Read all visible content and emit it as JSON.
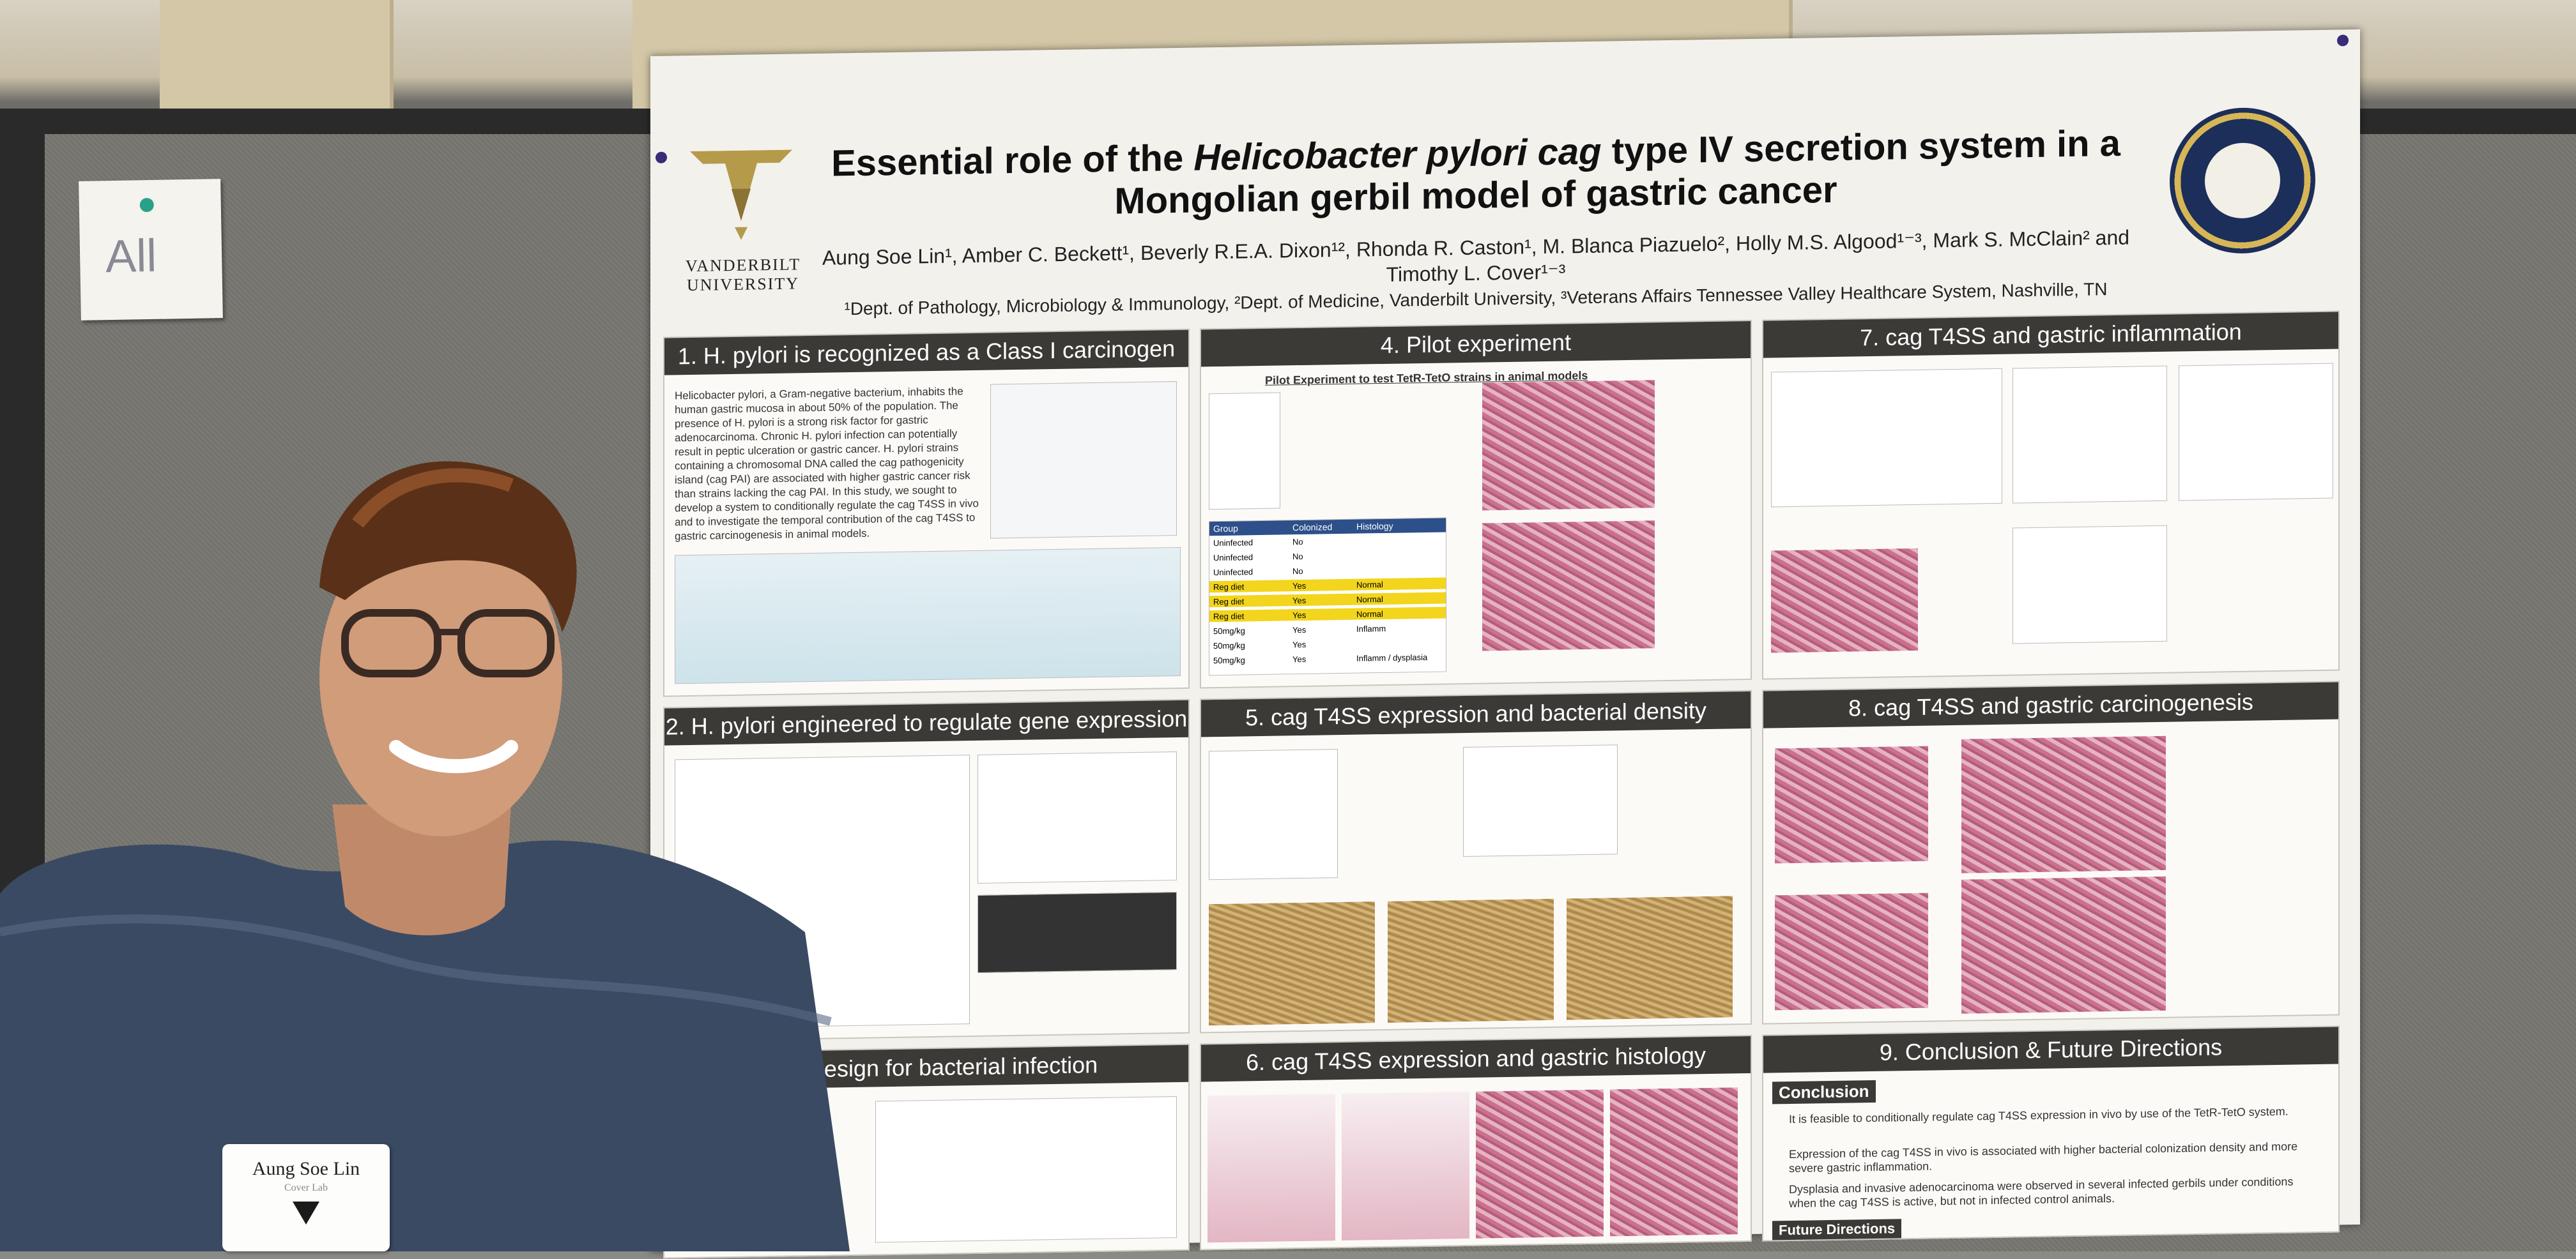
{
  "sticky_note": {
    "text": "All"
  },
  "poster": {
    "university": "VANDERBILT\nUNIVERSITY",
    "title_part1": "Essential role of the ",
    "title_species": "Helicobacter pylori cag",
    "title_part2": " type IV secretion system in a Mongolian gerbil model of gastric cancer",
    "authors": "Aung Soe Lin¹, Amber C. Beckett¹, Beverly R.E.A. Dixon¹², Rhonda R. Caston¹, M. Blanca Piazuelo², Holly M.S. Algood¹⁻³, Mark S. McClain² and Timothy L. Cover¹⁻³",
    "affiliations": "¹Dept. of Pathology, Microbiology & Immunology, ²Dept. of Medicine, Vanderbilt University, ³Veterans Affairs Tennessee Valley Healthcare System, Nashville, TN",
    "sections": [
      {
        "id": "s1",
        "title": "1. H. pylori is recognized as a Class I carcinogen"
      },
      {
        "id": "s2",
        "title": "2. H. pylori engineered to regulate gene expression"
      },
      {
        "id": "s3",
        "title": "ental design for bacterial infection"
      },
      {
        "id": "s4",
        "title": "4. Pilot experiment"
      },
      {
        "id": "s5",
        "title": "5. cag T4SS expression and bacterial density"
      },
      {
        "id": "s6",
        "title": "6. cag T4SS expression and gastric histology"
      },
      {
        "id": "s7",
        "title": "7. cag T4SS and gastric inflammation"
      },
      {
        "id": "s8",
        "title": "8. cag T4SS and gastric carcinogenesis"
      },
      {
        "id": "s9",
        "title": "9. Conclusion & Future Directions"
      }
    ],
    "s1_text": "Helicobacter pylori, a Gram-negative bacterium, inhabits the human gastric mucosa in about 50% of the population. The presence of H. pylori is a strong risk factor for gastric adenocarcinoma. Chronic H. pylori infection can potentially result in peptic ulceration or gastric cancer. H. pylori strains containing a chromosomal DNA called the cag pathogenicity island (cag PAI) are associated with higher gastric cancer risk than strains lacking the cag PAI. In this study, we sought to develop a system to conditionally regulate the cag T4SS in vivo and to investigate the temporal contribution of the cag T4SS to gastric carcinogenesis in animal models.",
    "s4_subtitle": "Pilot Experiment to test TetR-TetO strains in animal models",
    "s9_conclusion_label": "Conclusion",
    "s9_bullets": [
      "It is feasible to conditionally regulate cag T4SS expression in vivo by use of the TetR-TetO system.",
      "Expression of the cag T4SS in vivo is associated with higher bacterial colonization density and more severe gastric inflammation.",
      "Dysplasia and invasive adenocarcinoma were observed in several infected gerbils under conditions when the cag T4SS is active, but not in infected control animals."
    ],
    "s9_future_label": "Future Directions",
    "s4_table": {
      "headers": [
        "Group",
        "Colonized",
        "Histology"
      ],
      "rows": [
        [
          "Uninfected",
          "No",
          ""
        ],
        [
          "Uninfected",
          "No",
          ""
        ],
        [
          "Uninfected",
          "No",
          ""
        ],
        [
          "Reg diet",
          "Yes",
          "Normal"
        ],
        [
          "Reg diet",
          "Yes",
          "Normal"
        ],
        [
          "Reg diet",
          "Yes",
          "Normal"
        ],
        [
          "50mg/kg",
          "Yes",
          "Inflamm"
        ],
        [
          "50mg/kg",
          "Yes",
          ""
        ],
        [
          "50mg/kg",
          "Yes",
          "Inflamm / dysplasia"
        ]
      ]
    }
  },
  "name_badge": {
    "name": "Aung Soe Lin",
    "lab": "Cover Lab"
  },
  "colors": {
    "poster_header": "#3c3a36",
    "vanderbilt_gold": "#b59a4a",
    "highlight": "#f2d51c"
  }
}
